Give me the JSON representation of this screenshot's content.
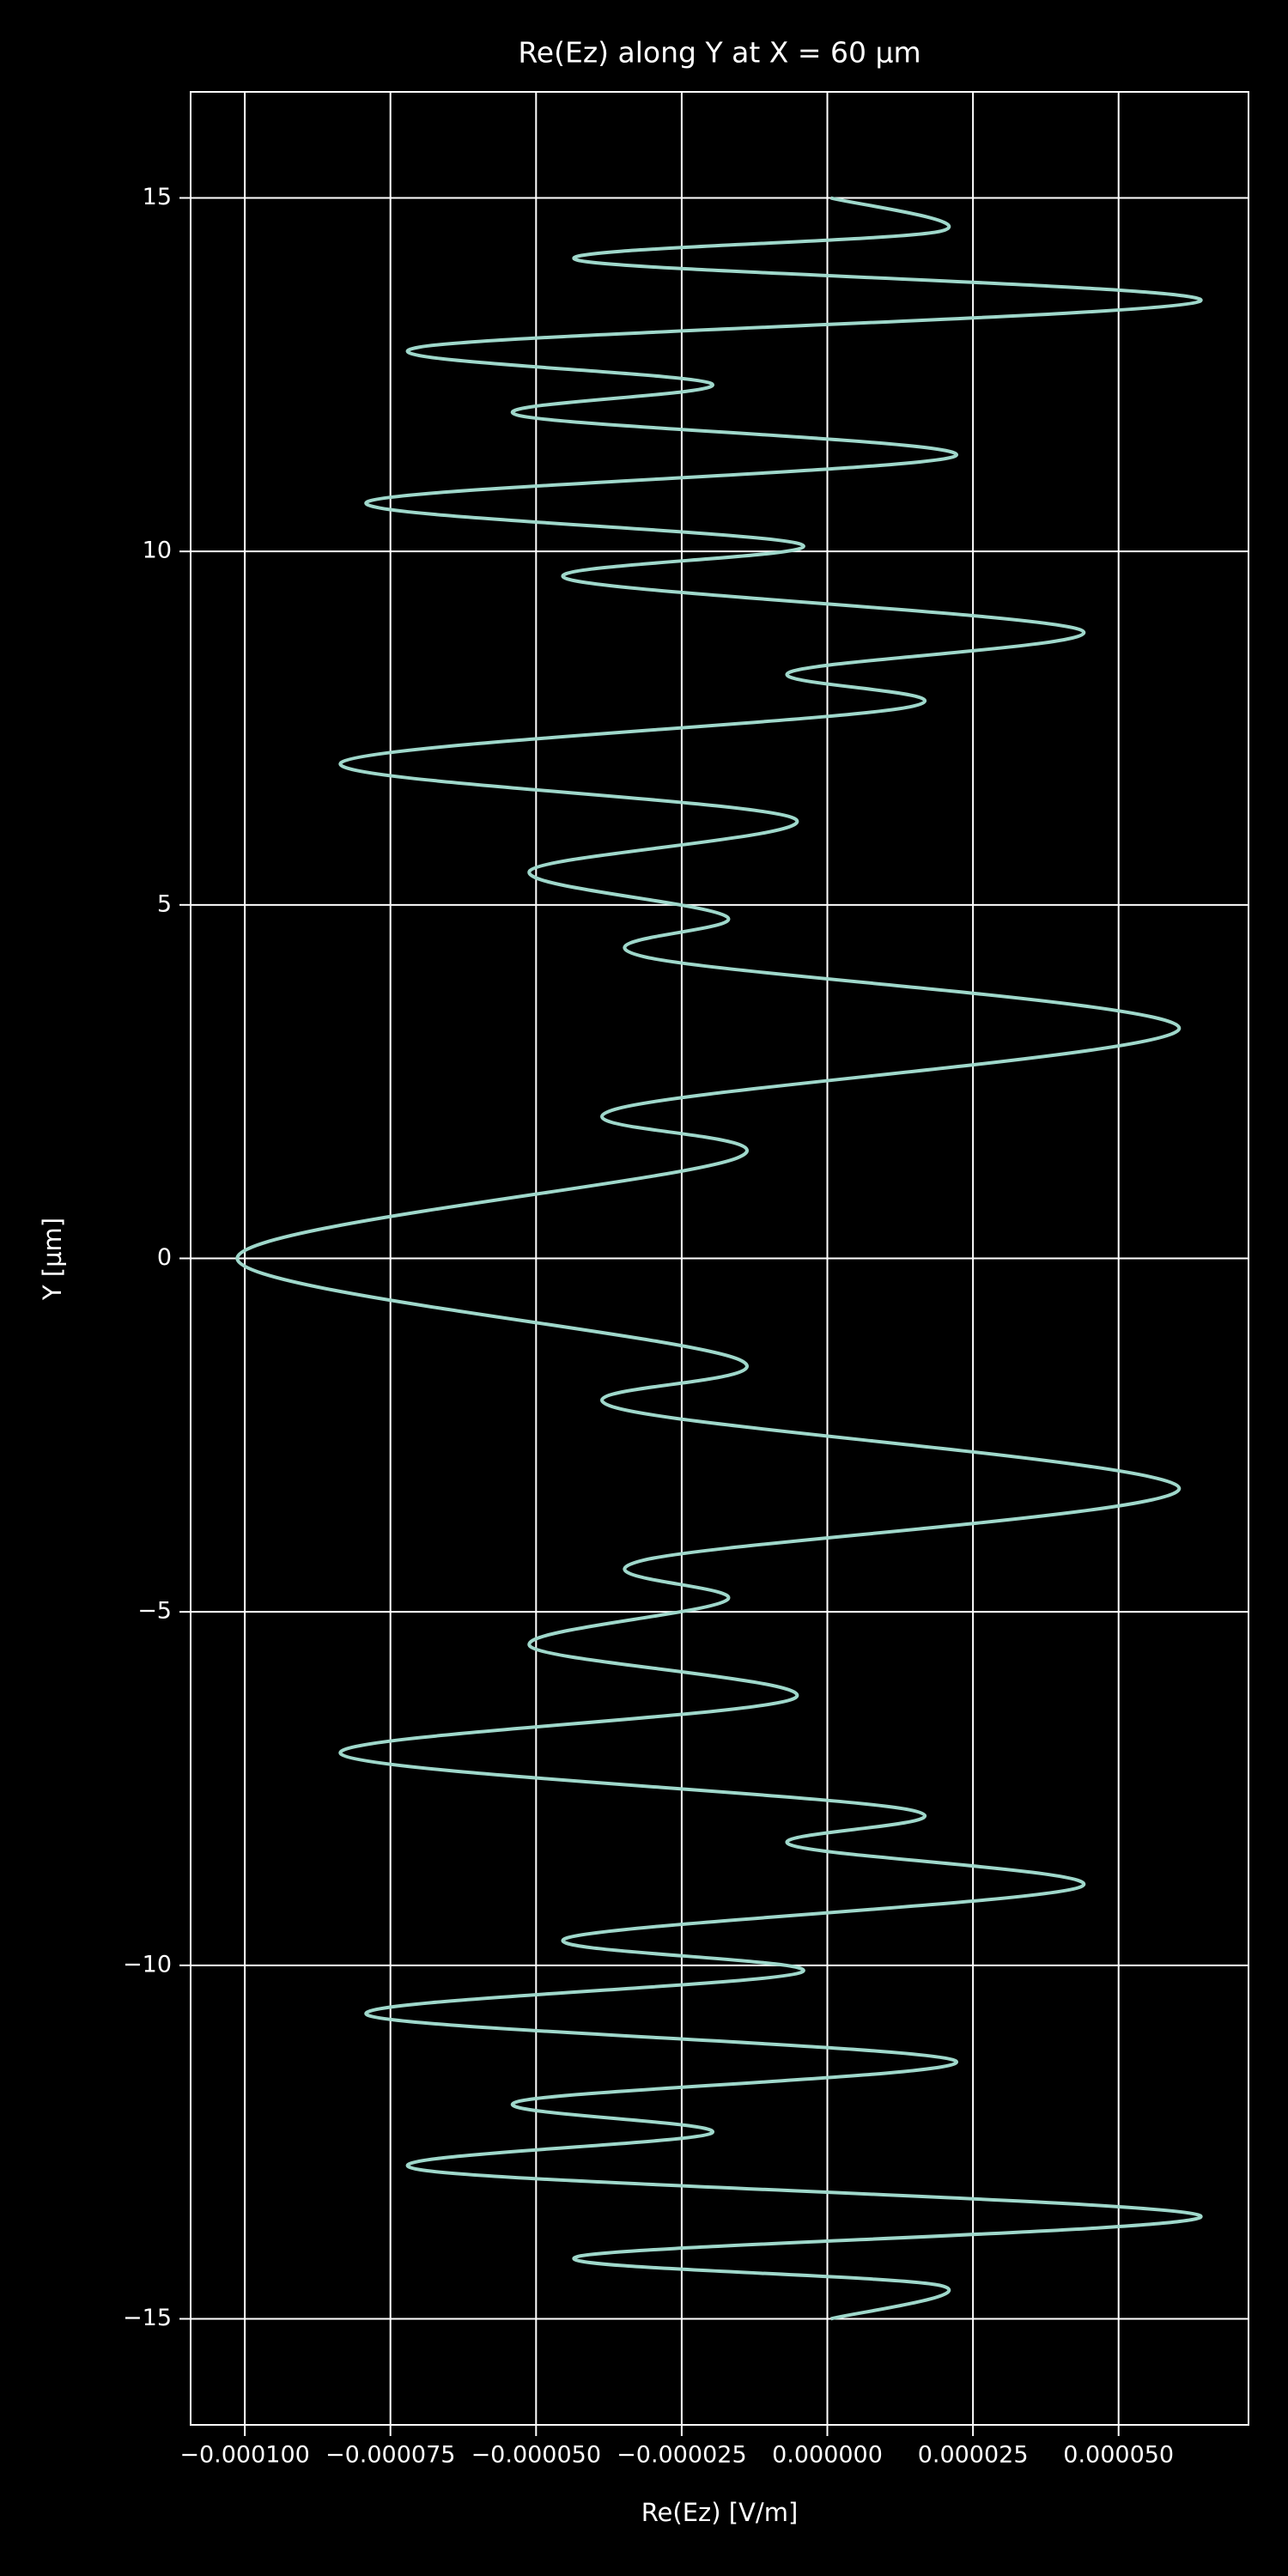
{
  "chart_data": {
    "type": "line",
    "title": "Re(Ez) along Y at X = 60 µm",
    "xlabel": "Re(Ez) [V/m]",
    "ylabel": "Y [µm]",
    "xlim": [
      -0.0001093,
      7.23e-05
    ],
    "ylim": [
      -16.5,
      16.5
    ],
    "xticks": [
      {
        "value": -0.0001,
        "label": "−0.000100"
      },
      {
        "value": -7.5e-05,
        "label": "−0.000075"
      },
      {
        "value": -5e-05,
        "label": "−0.000050"
      },
      {
        "value": -2.5e-05,
        "label": "−0.000025"
      },
      {
        "value": 0,
        "label": "0.000000"
      },
      {
        "value": 2.5e-05,
        "label": "0.000025"
      },
      {
        "value": 5e-05,
        "label": "0.000050"
      }
    ],
    "yticks": [
      {
        "value": -15,
        "label": "−15"
      },
      {
        "value": -10,
        "label": "−10"
      },
      {
        "value": -5,
        "label": "−5"
      },
      0,
      5,
      10,
      15
    ],
    "grid": true,
    "series": [
      {
        "color": "#9fd8cb",
        "x": [
          6e-07,
          1.95e-05,
          -4.29e-05,
          6.4e-05,
          -7e-05,
          -1.98e-05,
          -5.33e-05,
          2.2e-05,
          -7.9e-05,
          -4.5e-06,
          -4.46e-05,
          4.35e-05,
          -6.5e-06,
          1.41e-05,
          -8.35e-05,
          -5.6e-06,
          -5.11e-05,
          -1.72e-05,
          -3.16e-05,
          6.04e-05,
          -3.64e-05,
          -1.55e-05,
          -0.0001013,
          -1.55e-05,
          -3.64e-05,
          6.04e-05,
          -3.16e-05,
          -1.72e-05,
          -5.11e-05,
          -5.6e-06,
          -8.35e-05,
          1.41e-05,
          -6.5e-06,
          4.35e-05,
          -4.46e-05,
          -4.5e-06,
          -7.9e-05,
          2.2e-05,
          -5.33e-05,
          -1.98e-05,
          -7e-05,
          6.4e-05,
          -4.29e-05,
          1.95e-05,
          6e-07
        ],
        "values": [
          15,
          14.53,
          14.12,
          13.54,
          12.89,
          12.37,
          11.93,
          11.35,
          10.7,
          10.1,
          9.61,
          8.89,
          8.29,
          7.8,
          7.01,
          6.22,
          5.48,
          4.83,
          4.27,
          3.25,
          2.11,
          1.42,
          0,
          -1.42,
          -2.11,
          -3.25,
          -4.27,
          -4.83,
          -5.48,
          -6.22,
          -7.01,
          -7.8,
          -8.29,
          -8.89,
          -9.61,
          -10.1,
          -10.7,
          -11.35,
          -11.93,
          -12.37,
          -12.89,
          -13.54,
          -14.12,
          -14.53,
          -15
        ]
      }
    ]
  }
}
